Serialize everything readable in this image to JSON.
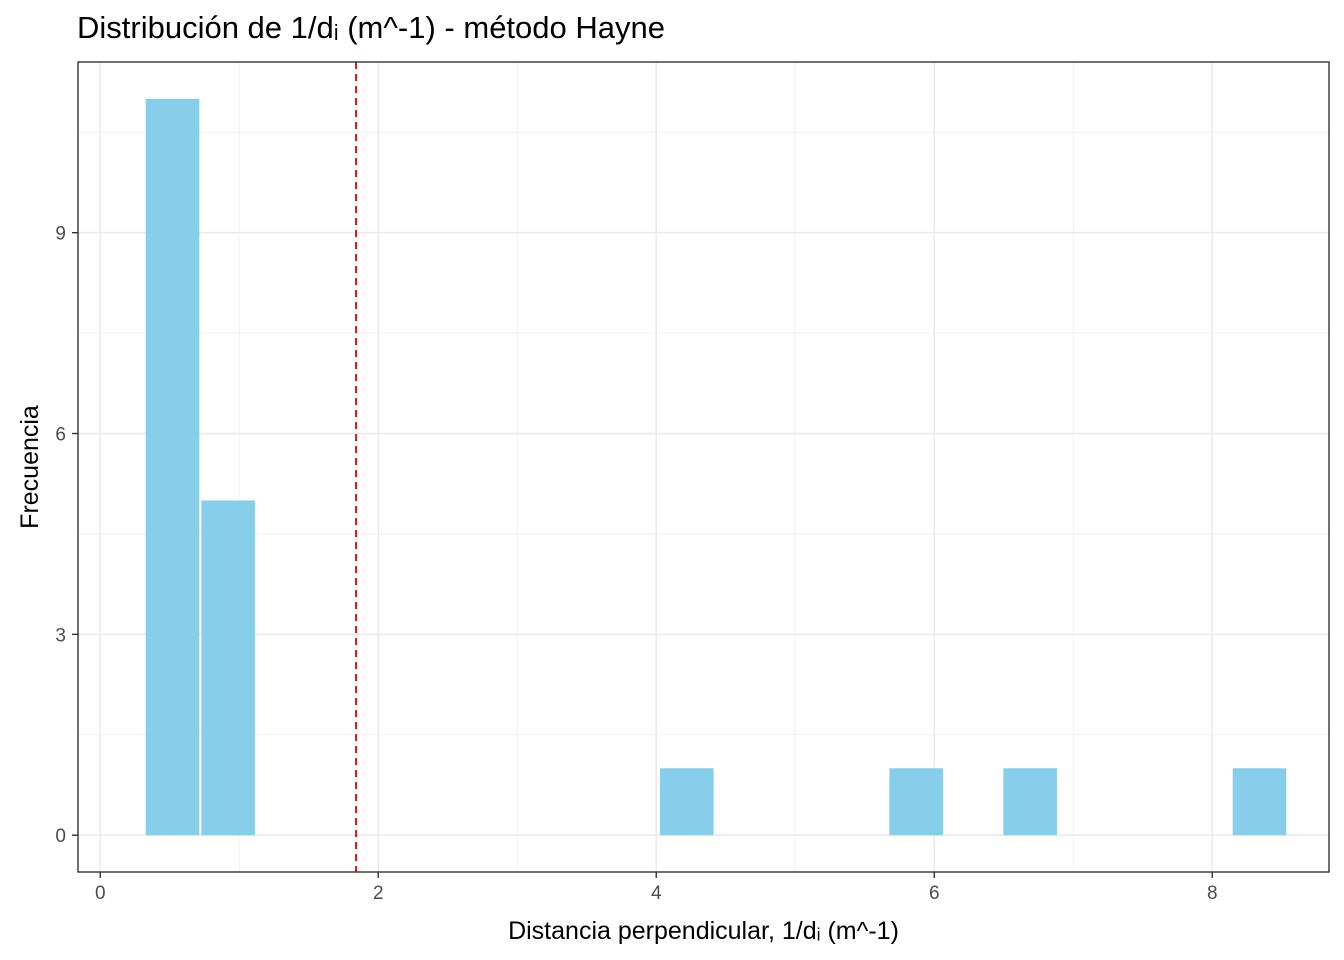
{
  "chart_data": {
    "type": "bar",
    "title": "Distribución de 1/dᵢ (m^-1) - método Hayne",
    "xlabel": "Distancia perpendicular, 1/dᵢ (m^-1)",
    "ylabel": "Frecuencia",
    "xlim": [
      -0.16,
      8.84
    ],
    "ylim": [
      -0.55,
      11.55
    ],
    "x_ticks": [
      "0",
      "2",
      "4",
      "6",
      "8"
    ],
    "y_ticks": [
      "0",
      "3",
      "6",
      "9"
    ],
    "x_tick_values": [
      0,
      2,
      4,
      6,
      8
    ],
    "y_tick_values": [
      0,
      3,
      6,
      9
    ],
    "grid": true,
    "bins": [
      {
        "x0": 0.32,
        "x1": 0.72,
        "count": 11
      },
      {
        "x0": 0.72,
        "x1": 1.12,
        "count": 5
      },
      {
        "x0": 4.02,
        "x1": 4.42,
        "count": 1
      },
      {
        "x0": 5.67,
        "x1": 6.07,
        "count": 1
      },
      {
        "x0": 6.49,
        "x1": 6.89,
        "count": 1
      },
      {
        "x0": 8.14,
        "x1": 8.54,
        "count": 1
      }
    ],
    "reference_line": {
      "x": 1.84,
      "color": "#e31a1c",
      "style": "dashed"
    },
    "bar_color": "#87ceeb"
  }
}
